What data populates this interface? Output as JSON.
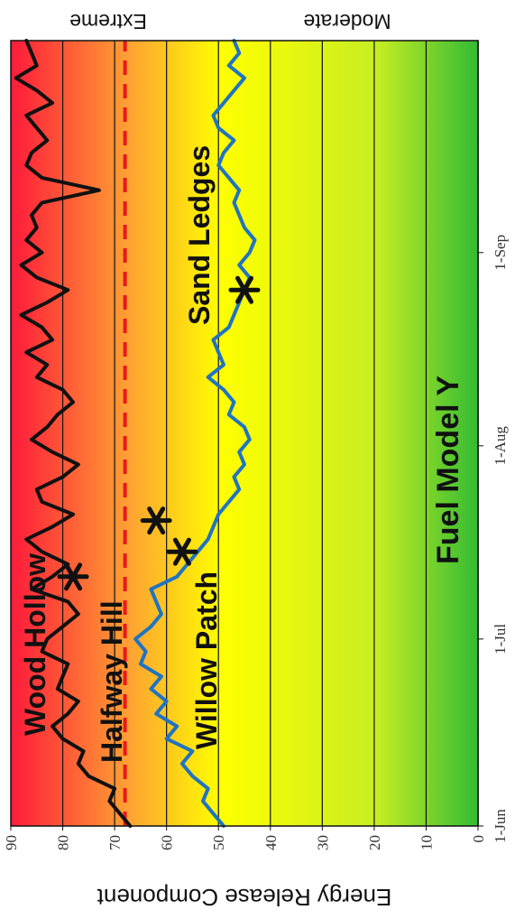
{
  "chart_data": {
    "type": "line",
    "ylabel": "Energy Release Component",
    "ylim": [
      0,
      90
    ],
    "y_ticks": [
      0,
      10,
      20,
      30,
      40,
      50,
      60,
      70,
      80,
      90
    ],
    "x_ticks": [
      "1-Jun",
      "1-Jul",
      "1-Aug",
      "1-Sep"
    ],
    "x_range_days": [
      0,
      126
    ],
    "gridlines_y": [
      10,
      20,
      30,
      40,
      50,
      60,
      70,
      80
    ],
    "scale_labels": {
      "top": "Extreme",
      "bottom": "Moderate"
    },
    "background_gradient": [
      "#ff1a3a",
      "#ffff00",
      "#33bb33"
    ],
    "threshold": {
      "value": 68,
      "color": "#e8191b",
      "style": "dashed"
    },
    "annotation": "Fuel Model Y",
    "series": [
      {
        "name": "Wood Hollow",
        "color": "#111111",
        "x": [
          0,
          2,
          4,
          6,
          8,
          10,
          12,
          14,
          16,
          18,
          20,
          22,
          24,
          26,
          28,
          30,
          32,
          34,
          36,
          38,
          40,
          42,
          44,
          46,
          48,
          50,
          52,
          54,
          56,
          58,
          60,
          62,
          64,
          66,
          68,
          70,
          72,
          74,
          76,
          78,
          80,
          82,
          84,
          86,
          88,
          90,
          92,
          94,
          96,
          98,
          100,
          102,
          104,
          106,
          108,
          110,
          112,
          114,
          116,
          118,
          120,
          122,
          124,
          126
        ],
        "values": [
          67,
          69,
          71,
          70,
          75,
          77,
          76,
          80,
          82,
          79,
          77,
          81,
          80,
          79,
          84,
          83,
          80,
          77,
          79,
          86,
          82,
          79,
          84,
          87,
          82,
          78,
          84,
          85,
          80,
          77,
          82,
          86,
          83,
          81,
          78,
          80,
          85,
          83,
          87,
          82,
          84,
          88,
          83,
          79,
          85,
          88,
          84,
          87,
          85,
          86,
          84,
          73,
          84,
          87,
          86,
          83,
          85,
          87,
          82,
          85,
          89,
          85,
          86,
          87
        ]
      },
      {
        "name": "Willow Patch",
        "color": "#1f74c2",
        "x": [
          0,
          2,
          4,
          6,
          8,
          10,
          12,
          14,
          16,
          18,
          20,
          22,
          24,
          26,
          28,
          30,
          32,
          34,
          36,
          38,
          40,
          42,
          44,
          46,
          48,
          50,
          52,
          54,
          56,
          58,
          60,
          62,
          64,
          66,
          68,
          70,
          72,
          74,
          76,
          78,
          80,
          82,
          84,
          86,
          88,
          90,
          92,
          94,
          96,
          98,
          100,
          102,
          104,
          106,
          108,
          110,
          112,
          114,
          116,
          118,
          120,
          122,
          124,
          126
        ],
        "values": [
          49,
          51,
          53,
          52,
          55,
          57,
          55,
          60,
          58,
          62,
          60,
          63,
          61,
          65,
          64,
          66,
          63,
          61,
          62,
          63,
          58,
          56,
          54,
          52,
          51,
          50,
          48,
          46,
          47,
          45,
          46,
          44,
          45,
          48,
          47,
          49,
          52,
          49,
          50,
          51,
          48,
          47,
          46,
          45,
          44,
          46,
          44,
          43,
          45,
          46,
          47,
          46,
          48,
          50,
          49,
          47,
          50,
          51,
          49,
          47,
          45,
          48,
          46,
          47
        ]
      }
    ],
    "series_labels": [
      "Wood Hollow",
      "Halfway Hill",
      "Willow Patch",
      "Sand Ledges"
    ],
    "fire_markers": [
      {
        "x": 40,
        "y": 78
      },
      {
        "x": 49,
        "y": 62
      },
      {
        "x": 44,
        "y": 57
      },
      {
        "x": 86,
        "y": 45
      }
    ]
  }
}
